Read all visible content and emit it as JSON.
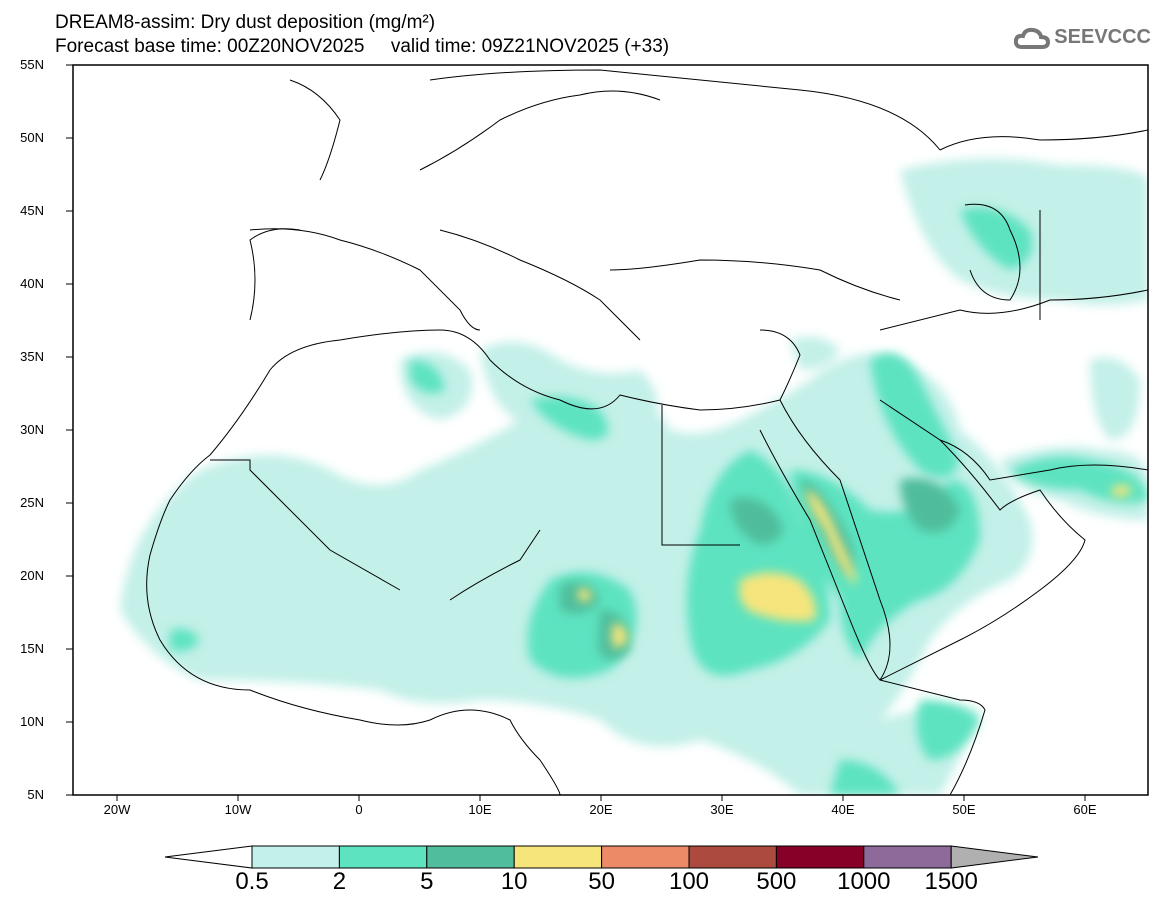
{
  "title": {
    "line1": "DREAM8-assim: Dry dust deposition (mg/m²)",
    "line2": "Forecast base time: 00Z20NOV2025     valid time: 09Z21NOV2025 (+33)"
  },
  "logo": {
    "text": "SEEVCCC",
    "icon": "cloud-icon"
  },
  "map": {
    "lat_labels": [
      "55N",
      "50N",
      "45N",
      "40N",
      "35N",
      "30N",
      "25N",
      "20N",
      "15N",
      "10N",
      "5N"
    ],
    "lon_labels": [
      "20W",
      "10W",
      "0",
      "10E",
      "20E",
      "30E",
      "40E",
      "50E",
      "60E"
    ]
  },
  "colorbar": {
    "colors": [
      "#c3f0e8",
      "#5de3c0",
      "#50bd9c",
      "#f6e57b",
      "#ec8a68",
      "#ad4a3f",
      "#860028",
      "#8e6a9a",
      "#b0b0b0"
    ],
    "labels": [
      "0.5",
      "2",
      "5",
      "10",
      "50",
      "100",
      "500",
      "1000",
      "1500"
    ]
  }
}
